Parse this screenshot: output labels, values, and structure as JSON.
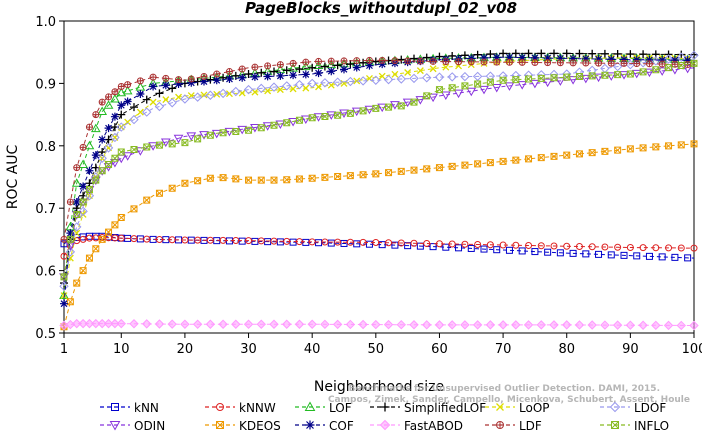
{
  "chart_data": {
    "type": "line",
    "title": "PageBlocks_withoutdupl_02_v08",
    "xlabel": "Neighborhood size",
    "ylabel": "ROC AUC",
    "xlim": [
      1,
      100
    ],
    "ylim": [
      0.5,
      1.0
    ],
    "xticks": [
      1,
      10,
      20,
      30,
      40,
      50,
      60,
      70,
      80,
      90,
      100
    ],
    "yticks": [
      0.5,
      0.6,
      0.7,
      0.8,
      0.9,
      1.0
    ],
    "watermark": {
      "line1": "Benchmarks for Unsupervised Outlier Detection. DAMI, 2015.",
      "line2": "Campos, Zimek, Sander, Campello, Micenkova, Schubert, Assent, Houle"
    },
    "legend_position": "bottom",
    "series": [
      {
        "name": "kNN",
        "color": "#0000cc",
        "marker": "square",
        "dash": "4,3",
        "points": [
          [
            1,
            0.643
          ],
          [
            2,
            0.65
          ],
          [
            3,
            0.653
          ],
          [
            5,
            0.655
          ],
          [
            7,
            0.655
          ],
          [
            10,
            0.652
          ],
          [
            15,
            0.65
          ],
          [
            20,
            0.649
          ],
          [
            30,
            0.647
          ],
          [
            40,
            0.645
          ],
          [
            50,
            0.642
          ],
          [
            60,
            0.638
          ],
          [
            70,
            0.633
          ],
          [
            80,
            0.628
          ],
          [
            90,
            0.624
          ],
          [
            100,
            0.62
          ]
        ]
      },
      {
        "name": "kNNW",
        "color": "#dd2222",
        "marker": "circle",
        "dash": "4,3",
        "points": [
          [
            1,
            0.623
          ],
          [
            2,
            0.64
          ],
          [
            3,
            0.648
          ],
          [
            5,
            0.652
          ],
          [
            7,
            0.653
          ],
          [
            10,
            0.652
          ],
          [
            15,
            0.65
          ],
          [
            20,
            0.649
          ],
          [
            30,
            0.648
          ],
          [
            40,
            0.646
          ],
          [
            50,
            0.645
          ],
          [
            60,
            0.643
          ],
          [
            70,
            0.641
          ],
          [
            80,
            0.639
          ],
          [
            90,
            0.637
          ],
          [
            100,
            0.636
          ]
        ]
      },
      {
        "name": "LOF",
        "color": "#22bb22",
        "marker": "triangle",
        "dash": "4,3",
        "points": [
          [
            1,
            0.56
          ],
          [
            2,
            0.67
          ],
          [
            3,
            0.74
          ],
          [
            5,
            0.8
          ],
          [
            7,
            0.855
          ],
          [
            10,
            0.885
          ],
          [
            15,
            0.9
          ],
          [
            20,
            0.905
          ],
          [
            25,
            0.91
          ],
          [
            30,
            0.915
          ],
          [
            35,
            0.922
          ],
          [
            40,
            0.928
          ],
          [
            50,
            0.935
          ],
          [
            60,
            0.94
          ],
          [
            70,
            0.942
          ],
          [
            80,
            0.941
          ],
          [
            90,
            0.94
          ],
          [
            100,
            0.938
          ]
        ]
      },
      {
        "name": "SimplifiedLOF",
        "color": "#000000",
        "marker": "plus",
        "dash": "4,3",
        "points": [
          [
            1,
            0.58
          ],
          [
            2,
            0.65
          ],
          [
            3,
            0.7
          ],
          [
            5,
            0.74
          ],
          [
            7,
            0.79
          ],
          [
            10,
            0.85
          ],
          [
            15,
            0.88
          ],
          [
            20,
            0.9
          ],
          [
            30,
            0.915
          ],
          [
            40,
            0.925
          ],
          [
            50,
            0.935
          ],
          [
            60,
            0.943
          ],
          [
            70,
            0.948
          ],
          [
            80,
            0.948
          ],
          [
            90,
            0.947
          ],
          [
            100,
            0.946
          ]
        ]
      },
      {
        "name": "LoOP",
        "color": "#dddd00",
        "marker": "cross",
        "dash": "4,3",
        "points": [
          [
            1,
            0.56
          ],
          [
            2,
            0.62
          ],
          [
            3,
            0.66
          ],
          [
            5,
            0.72
          ],
          [
            7,
            0.78
          ],
          [
            10,
            0.83
          ],
          [
            15,
            0.87
          ],
          [
            20,
            0.88
          ],
          [
            30,
            0.885
          ],
          [
            35,
            0.89
          ],
          [
            40,
            0.893
          ],
          [
            45,
            0.9
          ],
          [
            50,
            0.91
          ],
          [
            60,
            0.925
          ],
          [
            70,
            0.935
          ],
          [
            80,
            0.94
          ],
          [
            90,
            0.941
          ],
          [
            100,
            0.94
          ]
        ]
      },
      {
        "name": "LDOF",
        "color": "#9999ee",
        "marker": "diamond",
        "dash": "4,3",
        "points": [
          [
            1,
            0.575
          ],
          [
            2,
            0.63
          ],
          [
            3,
            0.67
          ],
          [
            5,
            0.72
          ],
          [
            7,
            0.78
          ],
          [
            10,
            0.83
          ],
          [
            15,
            0.86
          ],
          [
            20,
            0.875
          ],
          [
            30,
            0.89
          ],
          [
            40,
            0.9
          ],
          [
            50,
            0.905
          ],
          [
            60,
            0.91
          ],
          [
            70,
            0.912
          ],
          [
            80,
            0.915
          ],
          [
            90,
            0.93
          ],
          [
            100,
            0.945
          ]
        ]
      },
      {
        "name": "ODIN",
        "color": "#8833dd",
        "marker": "triangle-down",
        "dash": "4,3",
        "points": [
          [
            1,
            0.59
          ],
          [
            2,
            0.64
          ],
          [
            3,
            0.69
          ],
          [
            5,
            0.73
          ],
          [
            7,
            0.76
          ],
          [
            10,
            0.78
          ],
          [
            15,
            0.8
          ],
          [
            20,
            0.815
          ],
          [
            25,
            0.82
          ],
          [
            30,
            0.828
          ],
          [
            35,
            0.835
          ],
          [
            40,
            0.845
          ],
          [
            50,
            0.86
          ],
          [
            60,
            0.88
          ],
          [
            70,
            0.895
          ],
          [
            80,
            0.905
          ],
          [
            90,
            0.915
          ],
          [
            100,
            0.925
          ]
        ]
      },
      {
        "name": "KDEOS",
        "color": "#ee9900",
        "marker": "square-x",
        "dash": "4,3",
        "points": [
          [
            1,
            0.51
          ],
          [
            2,
            0.55
          ],
          [
            3,
            0.58
          ],
          [
            5,
            0.62
          ],
          [
            7,
            0.65
          ],
          [
            10,
            0.685
          ],
          [
            15,
            0.72
          ],
          [
            20,
            0.74
          ],
          [
            25,
            0.75
          ],
          [
            30,
            0.745
          ],
          [
            35,
            0.745
          ],
          [
            40,
            0.748
          ],
          [
            50,
            0.755
          ],
          [
            60,
            0.765
          ],
          [
            70,
            0.775
          ],
          [
            80,
            0.785
          ],
          [
            90,
            0.795
          ],
          [
            100,
            0.803
          ]
        ]
      },
      {
        "name": "COF",
        "color": "#000088",
        "marker": "star",
        "dash": "4,3",
        "points": [
          [
            1,
            0.547
          ],
          [
            2,
            0.66
          ],
          [
            3,
            0.71
          ],
          [
            5,
            0.76
          ],
          [
            7,
            0.81
          ],
          [
            10,
            0.865
          ],
          [
            15,
            0.895
          ],
          [
            20,
            0.9
          ],
          [
            25,
            0.905
          ],
          [
            30,
            0.91
          ],
          [
            35,
            0.912
          ],
          [
            40,
            0.915
          ],
          [
            50,
            0.93
          ],
          [
            60,
            0.938
          ],
          [
            70,
            0.942
          ],
          [
            80,
            0.94
          ],
          [
            90,
            0.938
          ],
          [
            100,
            0.937
          ]
        ]
      },
      {
        "name": "FastABOD",
        "color": "#ff99ff",
        "marker": "diamond-filled",
        "dash": "4,3",
        "points": [
          [
            1,
            0.512
          ],
          [
            3,
            0.515
          ],
          [
            10,
            0.515
          ],
          [
            20,
            0.514
          ],
          [
            40,
            0.514
          ],
          [
            60,
            0.513
          ],
          [
            80,
            0.513
          ],
          [
            100,
            0.512
          ]
        ]
      },
      {
        "name": "LDF",
        "color": "#aa3333",
        "marker": "circle-plus",
        "dash": "4,3",
        "points": [
          [
            1,
            0.65
          ],
          [
            2,
            0.71
          ],
          [
            3,
            0.765
          ],
          [
            5,
            0.83
          ],
          [
            7,
            0.87
          ],
          [
            10,
            0.895
          ],
          [
            15,
            0.91
          ],
          [
            20,
            0.905
          ],
          [
            25,
            0.915
          ],
          [
            30,
            0.925
          ],
          [
            40,
            0.935
          ],
          [
            50,
            0.937
          ],
          [
            60,
            0.935
          ],
          [
            70,
            0.934
          ],
          [
            80,
            0.933
          ],
          [
            90,
            0.932
          ],
          [
            100,
            0.93
          ]
        ]
      },
      {
        "name": "INFLO",
        "color": "#88bb22",
        "marker": "square-x",
        "dash": "4,3",
        "points": [
          [
            1,
            0.59
          ],
          [
            2,
            0.65
          ],
          [
            3,
            0.69
          ],
          [
            5,
            0.73
          ],
          [
            7,
            0.76
          ],
          [
            10,
            0.79
          ],
          [
            15,
            0.8
          ],
          [
            20,
            0.805
          ],
          [
            25,
            0.82
          ],
          [
            30,
            0.825
          ],
          [
            35,
            0.835
          ],
          [
            40,
            0.845
          ],
          [
            45,
            0.85
          ],
          [
            50,
            0.86
          ],
          [
            55,
            0.865
          ],
          [
            60,
            0.89
          ],
          [
            70,
            0.905
          ],
          [
            80,
            0.91
          ],
          [
            90,
            0.915
          ],
          [
            100,
            0.932
          ]
        ]
      }
    ]
  }
}
